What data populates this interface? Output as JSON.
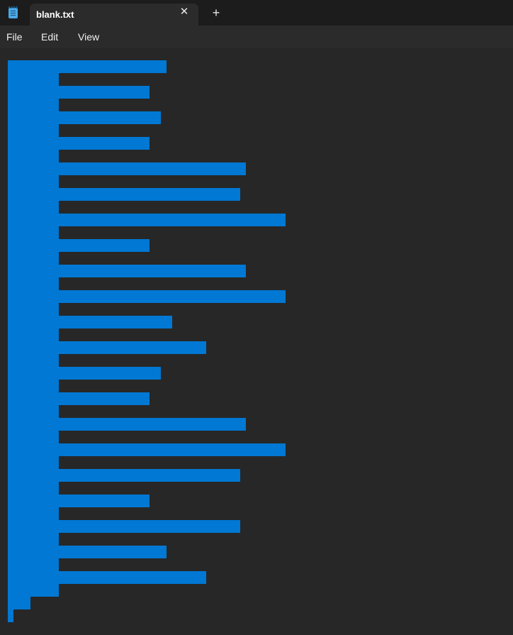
{
  "app": {
    "icon": "notepad-icon",
    "tab_title": "blank.txt",
    "tab_close_glyph": "✕",
    "new_tab_glyph": "+"
  },
  "menu": {
    "items": [
      "File",
      "Edit",
      "View"
    ]
  },
  "editor": {
    "selection_color": "#0078d4",
    "background": "#272727",
    "content_state": "text fully selected (highlight only, no visible characters)"
  }
}
